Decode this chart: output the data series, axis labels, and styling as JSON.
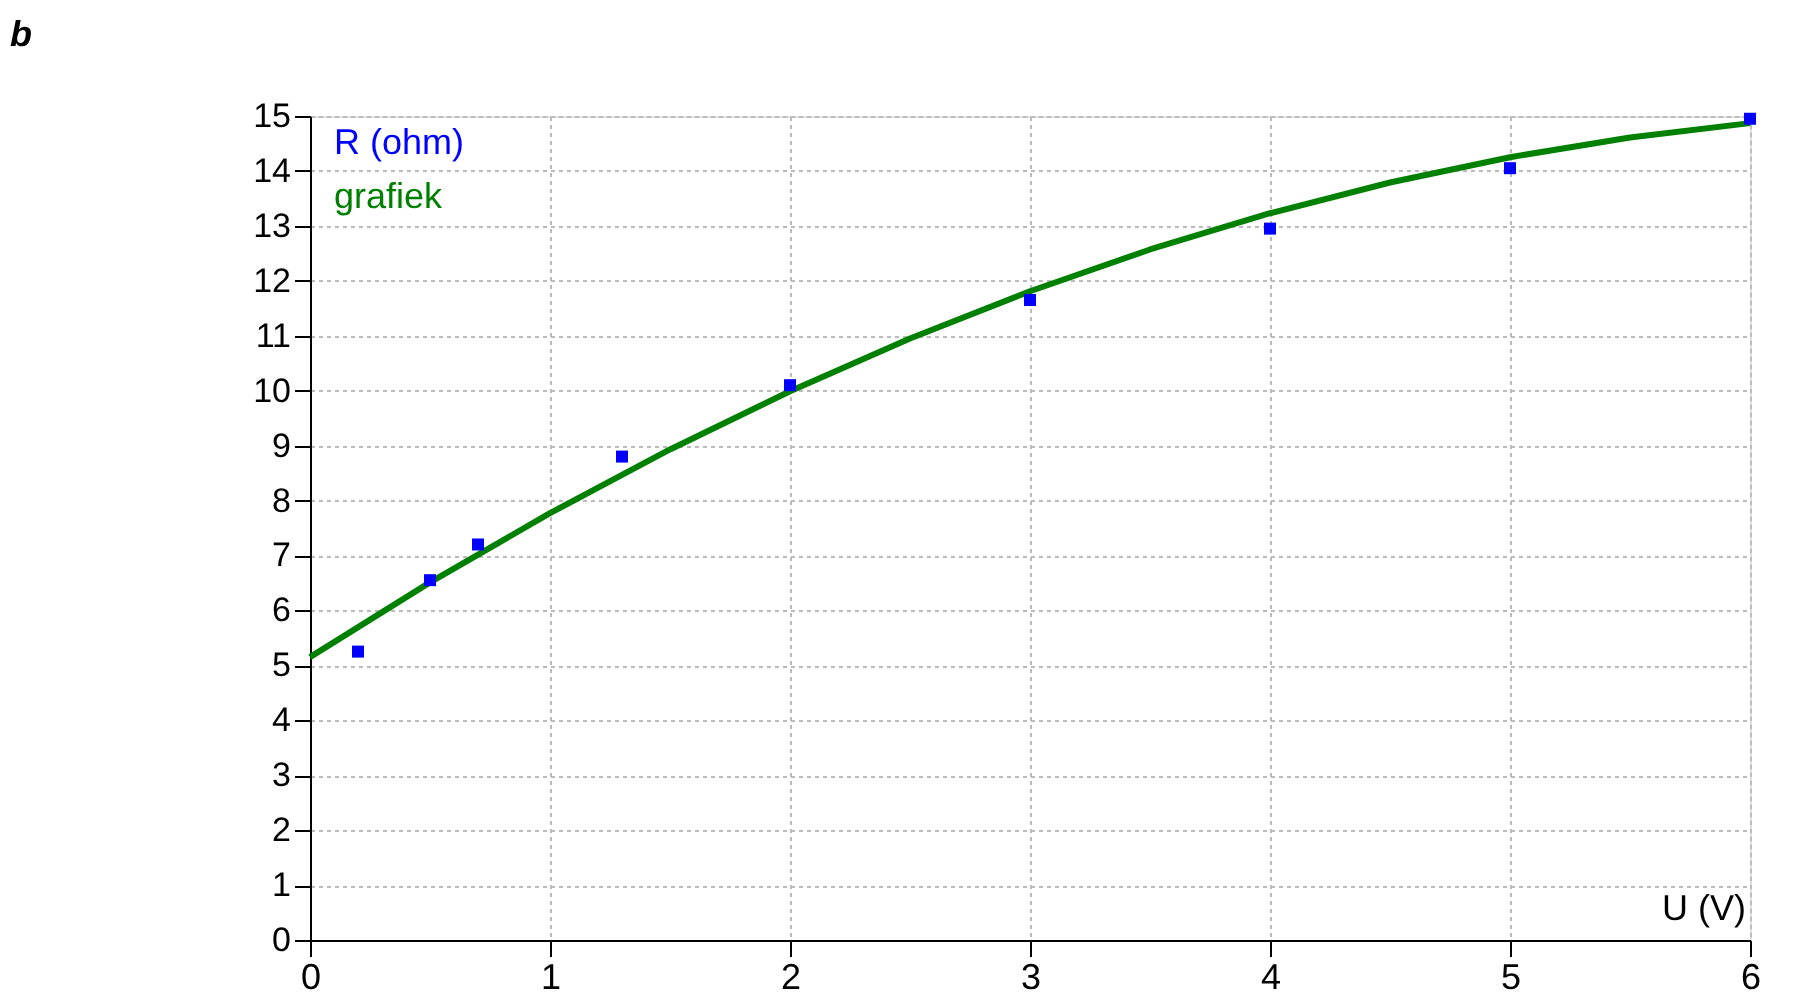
{
  "chart_data": {
    "type": "scatter",
    "xlabel": "U (V)",
    "annotations": [
      "b"
    ],
    "xlim": [
      0,
      6
    ],
    "xticks": [
      0,
      1,
      2,
      3,
      4,
      5,
      6
    ],
    "ylim": [
      0,
      15
    ],
    "yticks": [
      0,
      1,
      2,
      3,
      4,
      5,
      6,
      7,
      8,
      9,
      10,
      11,
      12,
      13,
      14,
      15
    ],
    "grid": true,
    "legend": "top left",
    "series": [
      {
        "name": "R (ohm)",
        "color": "#0000ff",
        "marker": "square",
        "x": [
          0.2,
          0.5,
          0.7,
          1.3,
          2,
          3,
          4,
          5,
          6
        ],
        "values": [
          5.25,
          6.55,
          7.2,
          8.8,
          10.1,
          11.65,
          12.95,
          14.05,
          14.95
        ]
      },
      {
        "name": "grafiek",
        "color": "#008000",
        "type": "line",
        "marker": "none",
        "line_style": "solid",
        "x": [
          0,
          0.5,
          1,
          1.5,
          2,
          2.5,
          3,
          3.5,
          4,
          4.5,
          5,
          5.5,
          6
        ],
        "values": [
          5.15,
          6.51,
          7.77,
          8.93,
          9.99,
          10.95,
          11.81,
          12.57,
          13.23,
          13.79,
          14.25,
          14.61,
          14.87
        ]
      }
    ]
  }
}
